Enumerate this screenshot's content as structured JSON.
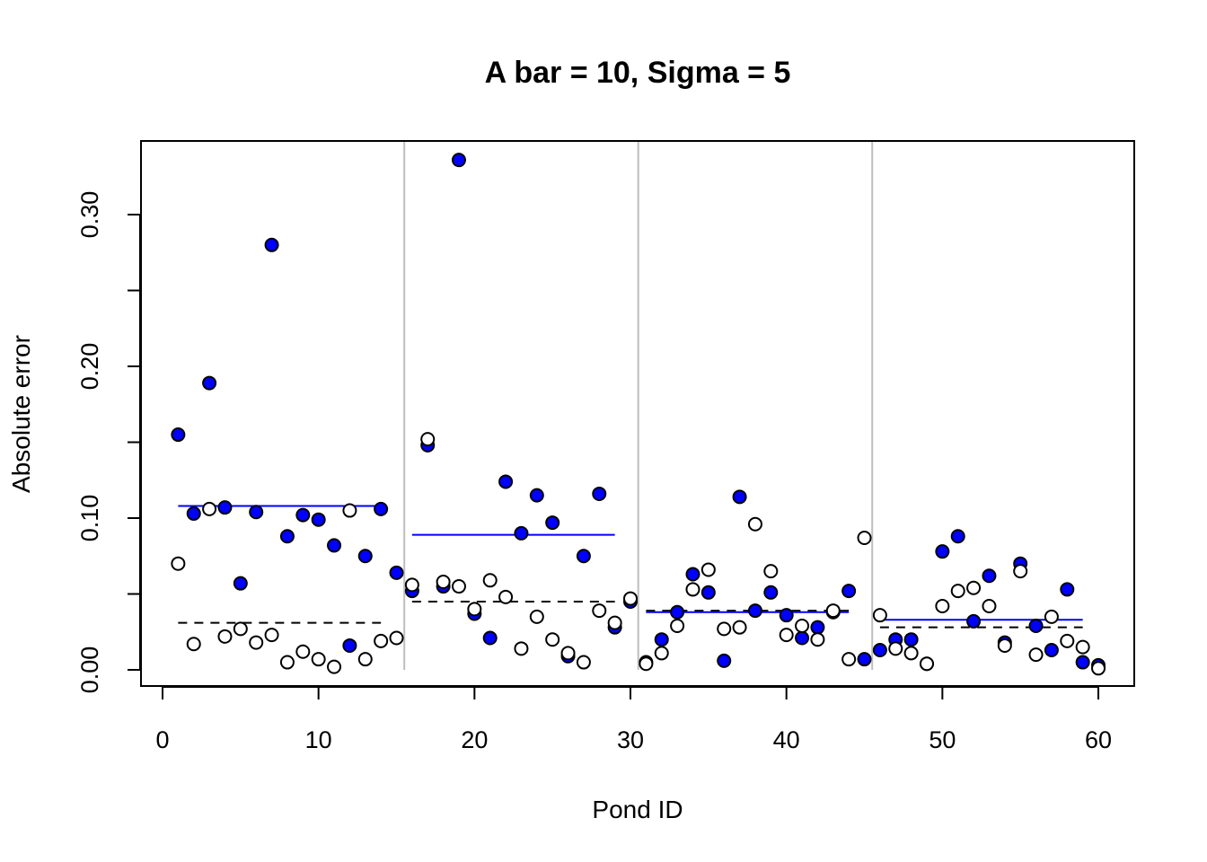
{
  "chart_data": {
    "type": "scatter",
    "title": "A bar = 10, Sigma = 5",
    "xlabel": "Pond ID",
    "ylabel": "Absolute error",
    "xlim": [
      0,
      60
    ],
    "ylim": [
      0,
      0.33
    ],
    "x_ticks": [
      0,
      10,
      20,
      30,
      40,
      50,
      60
    ],
    "x_tick_labels": [
      "0",
      "10",
      "20",
      "30",
      "40",
      "50",
      "60"
    ],
    "y_ticks": [
      0.0,
      0.05,
      0.1,
      0.15,
      0.2,
      0.25,
      0.3
    ],
    "y_tick_labels": [
      "0.00",
      "",
      "0.10",
      "",
      "0.20",
      "",
      "0.30"
    ],
    "group_dividers": [
      15.5,
      30.5,
      45.5
    ],
    "colors": {
      "filled": "#0000ff",
      "mean_line": "#0000ff",
      "divider": "#bebebe",
      "open": "#ffffff",
      "stroke": "#000000"
    },
    "series": [
      {
        "marker": "filled-circle",
        "color": "#0000ff",
        "x": [
          1,
          2,
          3,
          4,
          5,
          6,
          7,
          8,
          9,
          10,
          11,
          12,
          13,
          14,
          15,
          16,
          17,
          18,
          19,
          20,
          21,
          22,
          23,
          24,
          25,
          26,
          27,
          28,
          29,
          30,
          31,
          32,
          33,
          34,
          35,
          36,
          37,
          38,
          39,
          40,
          41,
          42,
          43,
          44,
          45,
          46,
          47,
          48,
          49,
          50,
          51,
          52,
          53,
          54,
          55,
          56,
          57,
          58,
          59,
          60
        ],
        "y": [
          0.155,
          0.103,
          0.189,
          0.107,
          0.057,
          0.104,
          0.28,
          0.088,
          0.102,
          0.099,
          0.082,
          0.016,
          0.075,
          0.106,
          0.064,
          0.052,
          0.148,
          0.055,
          0.336,
          0.037,
          0.021,
          0.124,
          0.09,
          0.115,
          0.097,
          0.009,
          0.075,
          0.116,
          0.028,
          0.045,
          0.005,
          0.02,
          0.038,
          0.063,
          0.051,
          0.006,
          0.114,
          0.039,
          0.051,
          0.036,
          0.021,
          0.028,
          0.038,
          0.052,
          0.007,
          0.013,
          0.02,
          0.02,
          0.004,
          0.078,
          0.088,
          0.032,
          0.062,
          0.018,
          0.07,
          0.029,
          0.013,
          0.053,
          0.005,
          0.003
        ]
      },
      {
        "marker": "open-circle",
        "color": "#ffffff",
        "x": [
          1,
          2,
          3,
          4,
          5,
          6,
          7,
          8,
          9,
          10,
          11,
          12,
          13,
          14,
          15,
          16,
          17,
          18,
          19,
          20,
          21,
          22,
          23,
          24,
          25,
          26,
          27,
          28,
          29,
          30,
          31,
          32,
          33,
          34,
          35,
          36,
          37,
          38,
          39,
          40,
          41,
          42,
          43,
          44,
          45,
          46,
          47,
          48,
          49,
          50,
          51,
          52,
          53,
          54,
          55,
          56,
          57,
          58,
          59,
          60
        ],
        "y": [
          0.07,
          0.017,
          0.106,
          0.022,
          0.027,
          0.018,
          0.023,
          0.005,
          0.012,
          0.007,
          0.002,
          0.105,
          0.007,
          0.019,
          0.021,
          0.056,
          0.152,
          0.058,
          0.055,
          0.04,
          0.059,
          0.048,
          0.014,
          0.035,
          0.02,
          0.011,
          0.005,
          0.039,
          0.031,
          0.047,
          0.004,
          0.011,
          0.029,
          0.053,
          0.066,
          0.027,
          0.028,
          0.096,
          0.065,
          0.023,
          0.029,
          0.02,
          0.039,
          0.007,
          0.087,
          0.036,
          0.014,
          0.011,
          0.004,
          0.042,
          0.052,
          0.054,
          0.042,
          0.016,
          0.065,
          0.01,
          0.035,
          0.019,
          0.015,
          0.001
        ]
      }
    ],
    "mean_lines": [
      {
        "x0": 1,
        "x1": 14,
        "y": 0.108
      },
      {
        "x0": 16,
        "x1": 29,
        "y": 0.089
      },
      {
        "x0": 31,
        "x1": 44,
        "y": 0.038
      },
      {
        "x0": 46,
        "x1": 59,
        "y": 0.033
      }
    ],
    "dashed_lines": [
      {
        "x0": 1,
        "x1": 14,
        "y": 0.031
      },
      {
        "x0": 16,
        "x1": 29,
        "y": 0.045
      },
      {
        "x0": 31,
        "x1": 44,
        "y": 0.039
      },
      {
        "x0": 46,
        "x1": 59,
        "y": 0.028
      }
    ]
  }
}
